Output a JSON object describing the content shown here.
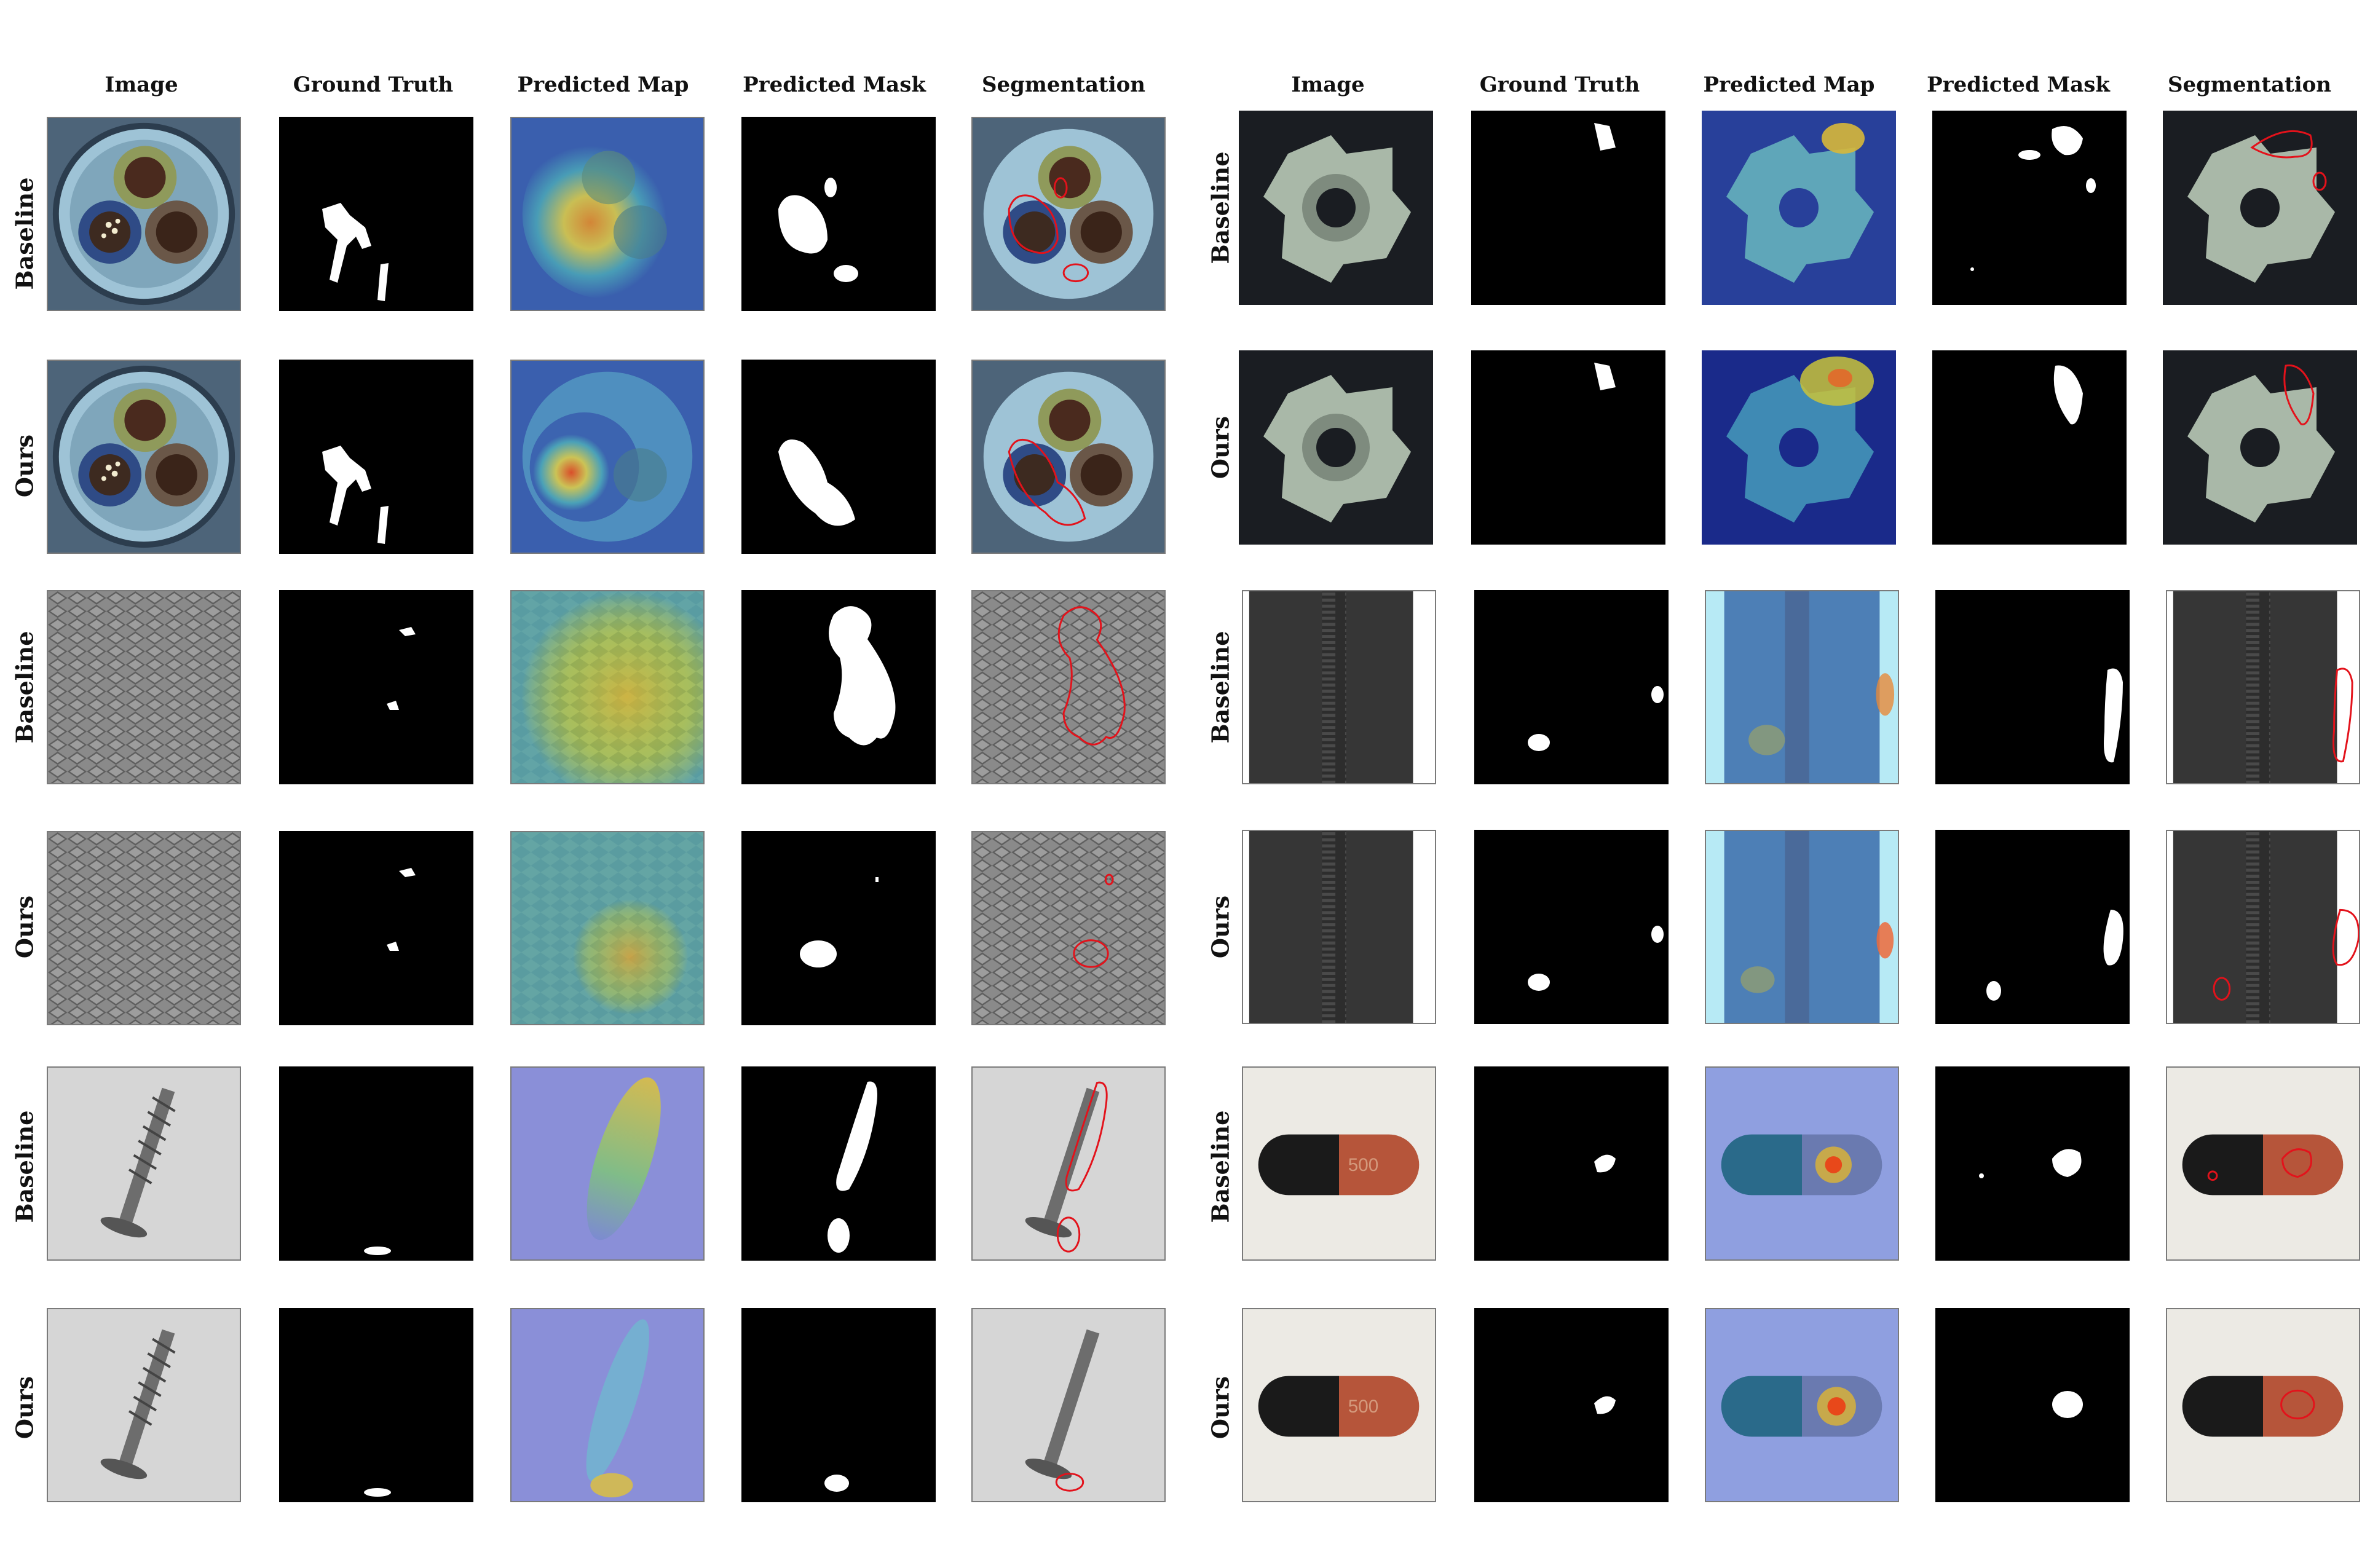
{
  "left_grid": {
    "columns": [
      "Image",
      "Ground Truth",
      "Predicted Map",
      "Predicted Mask",
      "Segmentation"
    ],
    "rows": [
      "Baseline",
      "Ours",
      "Baseline",
      "Ours",
      "Baseline",
      "Ours"
    ]
  },
  "right_grid": {
    "columns": [
      "Image",
      "Ground Truth",
      "Predicted Map",
      "Predicted Mask",
      "Segmentation"
    ],
    "rows": [
      "Baseline",
      "Ours",
      "Baseline",
      "Ours",
      "Baseline",
      "Ours"
    ]
  },
  "panel_images": [
    "cable: three-wire cable cross-section (green, blue, brown insulation) on gray background",
    "grid: gray diamond mesh texture",
    "screw: metal screw lying diagonally on light gray background",
    "metal nut: four-tab translucent nut on black background",
    "zipper: black zipper teeth running vertically with white margin",
    "capsule: black and orange capsule labelled 500 on white background"
  ],
  "colors": {
    "contour": "#e3121b",
    "mask_fg": "#ffffff",
    "mask_bg": "#000000",
    "heat_low": "#3a4fb8",
    "heat_mid": "#c8d23a",
    "heat_high": "#e8481a"
  }
}
